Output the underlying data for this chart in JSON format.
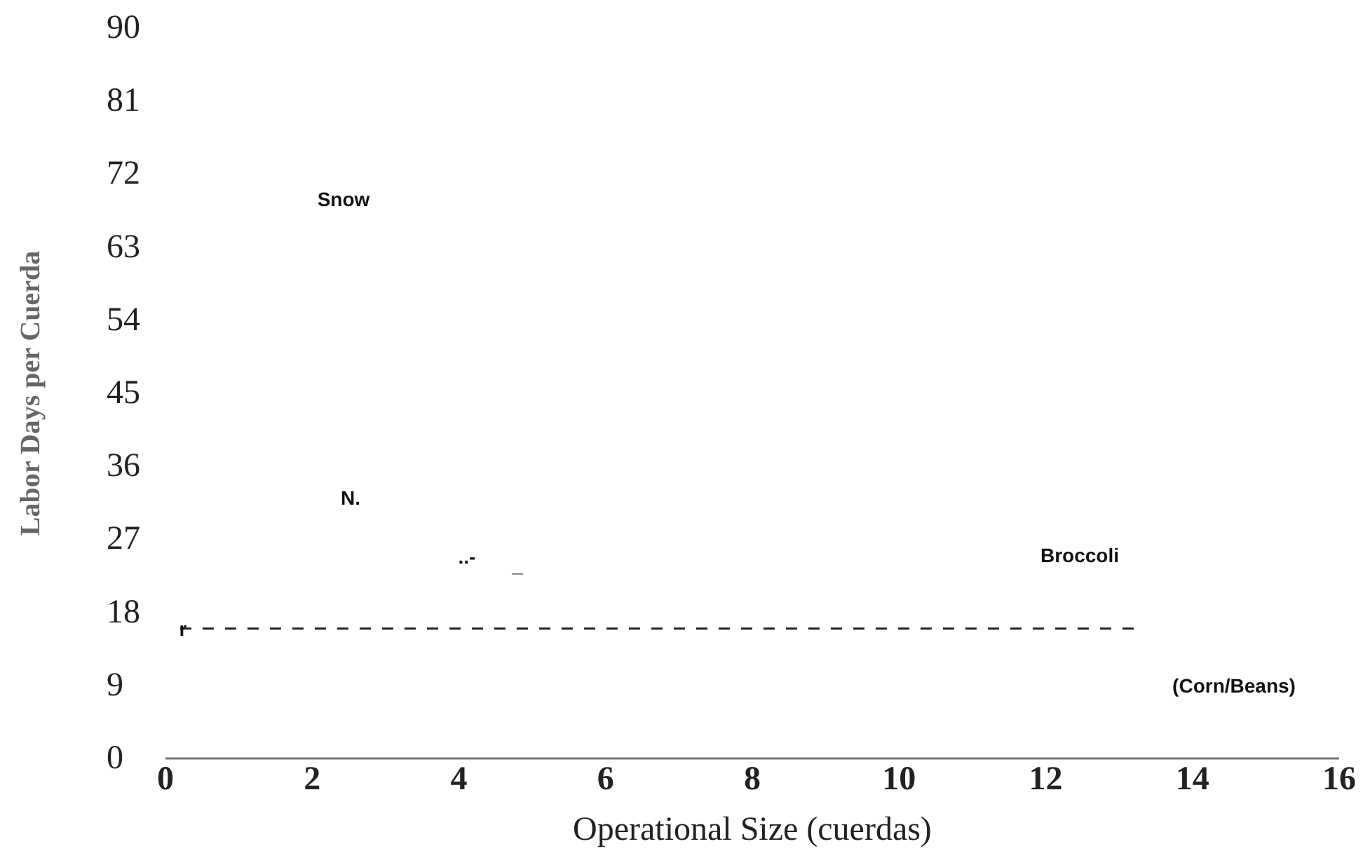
{
  "chart_data": {
    "type": "line",
    "xlabel": "Operational Size (cuerdas)",
    "ylabel": "Labor Days per Cuerda",
    "xlim": [
      0,
      16
    ],
    "xticks": [
      0,
      2,
      4,
      6,
      8,
      10,
      12,
      14,
      16
    ],
    "ylim": [
      0,
      90
    ],
    "yticks": [
      0,
      9,
      18,
      27,
      36,
      45,
      54,
      63,
      72,
      81,
      90
    ],
    "series": [
      {
        "color": "#222222",
        "x": [
          0.2,
          13.2
        ],
        "values": [
          16,
          16
        ],
        "line_style": "dashed"
      }
    ],
    "annotations": [
      "Snow",
      "N.",
      "..-",
      "_",
      {
        "text": "r",
        "x": 0.2,
        "y": 16
      },
      "Broccoli",
      "(Corn/Beans)"
    ],
    "grid": false,
    "marker": "none"
  }
}
